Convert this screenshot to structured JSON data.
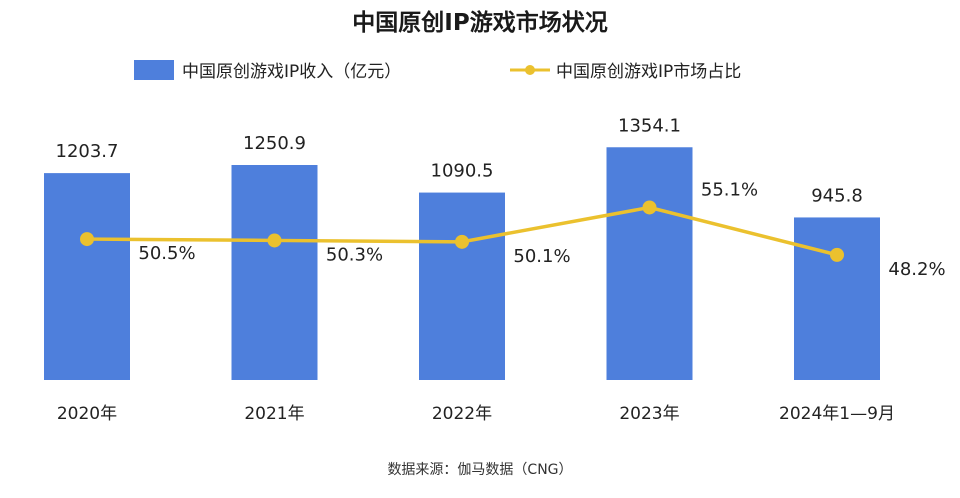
{
  "chart_data": {
    "type": "bar",
    "title": "中国原创IP游戏市场状况",
    "categories": [
      "2020年",
      "2021年",
      "2022年",
      "2023年",
      "2024年1—9月"
    ],
    "series": [
      {
        "name": "中国原创游戏IP收入（亿元）",
        "type": "bar",
        "axis": "left",
        "values": [
          1203.7,
          1250.9,
          1090.5,
          1354.1,
          945.8
        ],
        "labels": [
          "1203.7",
          "1250.9",
          "1090.5",
          "1354.1",
          "945.8"
        ],
        "color": "#4e7fdc"
      },
      {
        "name": "中国原创游戏IP市场占比",
        "type": "line",
        "axis": "right",
        "values": [
          50.5,
          50.3,
          50.1,
          55.1,
          48.2
        ],
        "labels": [
          "50.5%",
          "50.3%",
          "50.1%",
          "55.1%",
          "48.2%"
        ],
        "color": "#ebc12e"
      }
    ],
    "ylim": [
      0,
      1600
    ],
    "y2lim": [
      30,
      70
    ],
    "grid": false,
    "legend": "top",
    "source": "数据来源：伽马数据（CNG）"
  }
}
